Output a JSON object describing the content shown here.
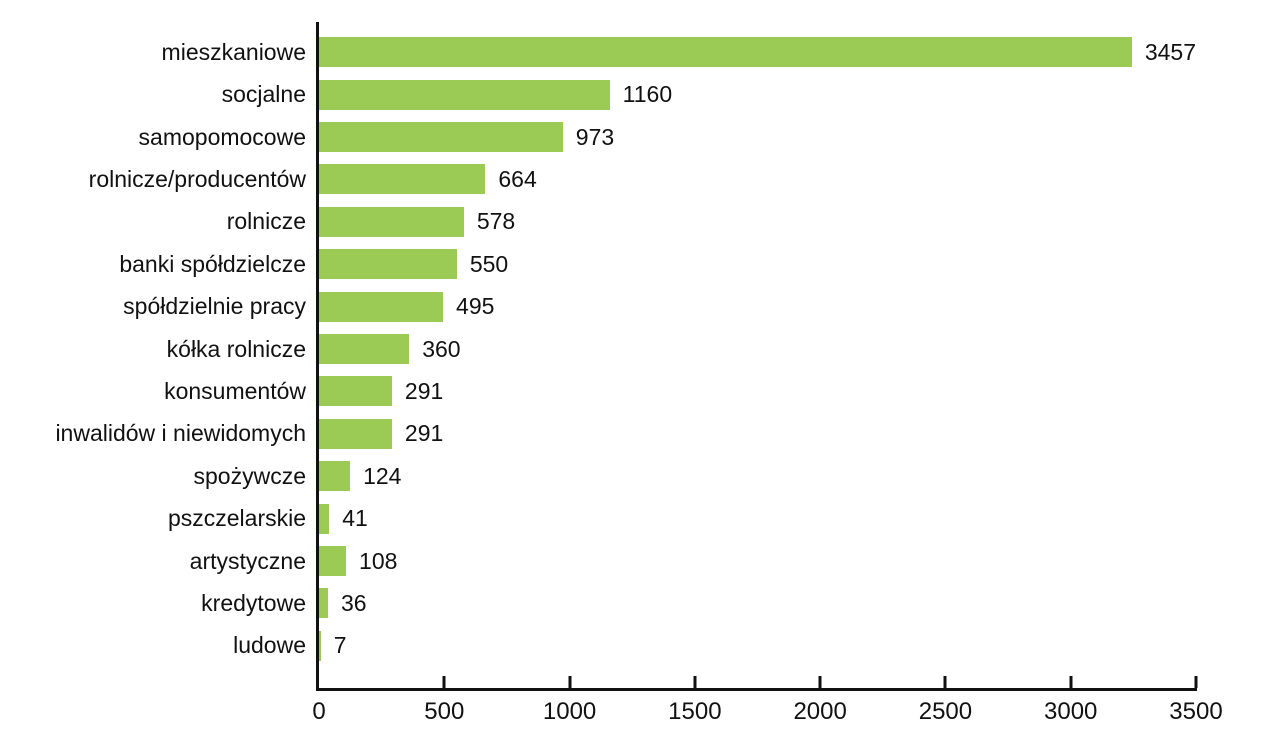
{
  "chart_data": {
    "type": "bar",
    "orientation": "horizontal",
    "title": "",
    "xlabel": "",
    "ylabel": "",
    "categories": [
      "mieszkaniowe",
      "socjalne",
      "samopomocowe",
      "rolnicze/producentów",
      "rolnicze",
      "banki spółdzielcze",
      "spółdzielnie pracy",
      "kółka rolnicze",
      "konsumentów",
      "inwalidów i niewidomych",
      "spożywcze",
      "pszczelarskie",
      "artystyczne",
      "kredytowe",
      "ludowe"
    ],
    "values": [
      3457,
      1160,
      973,
      664,
      578,
      550,
      495,
      360,
      291,
      291,
      124,
      41,
      108,
      36,
      7
    ],
    "value_labels_shown": true,
    "xlim": [
      0,
      3500
    ],
    "x_ticks": [
      0,
      500,
      1000,
      1500,
      2000,
      2500,
      3000,
      3500
    ],
    "grid": false,
    "legend": "none",
    "bar_color": "#9ccb55",
    "axis_color": "#111111",
    "text_color": "#111111",
    "background_color": "#ffffff"
  }
}
